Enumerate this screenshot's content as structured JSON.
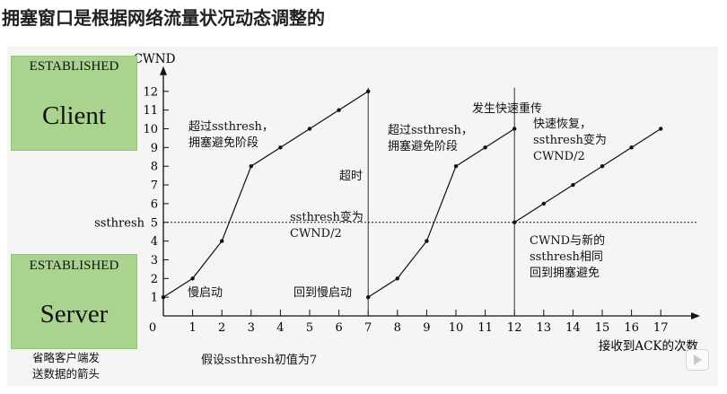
{
  "heading": "拥塞窗口是根据网络流量状况动态调整的",
  "client_box": {
    "line1": "ESTABLISHED",
    "line2": "Client"
  },
  "server_box": {
    "line1": "ESTABLISHED",
    "line2": "Server"
  },
  "footnote_left": [
    "省略客户端发",
    "送数据的箭头"
  ],
  "footnote_center": "假设ssthresh初值为7",
  "annotations": {
    "phase1_avoid": [
      "超过ssthresh，",
      "拥塞避免阶段"
    ],
    "timeout": "超时",
    "slow_start": "慢启动",
    "ssthresh_change": [
      "ssthresh变为",
      "CWND/2"
    ],
    "back_slow_start": "回到慢启动",
    "phase2_avoid": [
      "超过ssthresh，",
      "拥塞避免阶段"
    ],
    "fast_retransmit": "发生快速重传",
    "fast_recovery": [
      "快速恢复，",
      "ssthresh变为",
      "CWND/2"
    ],
    "cwnd_equal": [
      "CWND与新的",
      "ssthresh相同",
      "回到拥塞避免"
    ]
  },
  "chart_data": {
    "type": "line",
    "xlabel": "接收到ACK的次数",
    "ylabel": "CWND",
    "xlim": [
      0,
      17
    ],
    "ylim": [
      0,
      12
    ],
    "x_ticks": [
      0,
      1,
      2,
      3,
      4,
      5,
      6,
      7,
      8,
      9,
      10,
      11,
      12,
      13,
      14,
      15,
      16,
      17
    ],
    "y_ticks": [
      1,
      2,
      3,
      4,
      5,
      6,
      7,
      8,
      9,
      10,
      11,
      12
    ],
    "ssthresh": {
      "label": "ssthresh",
      "value": 5
    },
    "vertical_lines": [
      7,
      12
    ],
    "segments": [
      {
        "x": [
          0,
          1,
          2,
          3,
          4,
          5,
          6,
          7
        ],
        "y": [
          1,
          2,
          4,
          8,
          9,
          10,
          11,
          12
        ]
      },
      {
        "x": [
          7,
          8,
          9,
          10,
          11,
          12
        ],
        "y": [
          1,
          2,
          4,
          8,
          9,
          10
        ]
      },
      {
        "x": [
          12,
          13,
          14,
          15,
          16,
          17
        ],
        "y": [
          5,
          6,
          7,
          8,
          9,
          10
        ]
      }
    ]
  }
}
